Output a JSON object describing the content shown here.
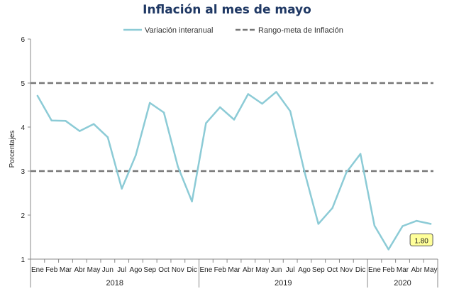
{
  "chart_data": {
    "type": "line",
    "title": "Inflación al mes de mayo",
    "ylabel": "Porcentajes",
    "xlabel": "",
    "ylim": [
      1,
      6
    ],
    "yticks": [
      1,
      2,
      3,
      4,
      5,
      6
    ],
    "grid": false,
    "legend_position": "top",
    "categories": [
      "Ene",
      "Feb",
      "Mar",
      "Abr",
      "May",
      "Jun",
      "Jul",
      "Ago",
      "Sep",
      "Oct",
      "Nov",
      "Dic",
      "Ene",
      "Feb",
      "Mar",
      "Abr",
      "May",
      "Jun",
      "Jul",
      "Ago",
      "Sep",
      "Oct",
      "Nov",
      "Dic",
      "Ene",
      "Feb",
      "Mar",
      "Abr",
      "May"
    ],
    "year_groups": [
      {
        "label": "2018",
        "start": 0,
        "end": 11
      },
      {
        "label": "2019",
        "start": 12,
        "end": 23
      },
      {
        "label": "2020",
        "start": 24,
        "end": 28
      }
    ],
    "series": [
      {
        "name": "Variación interanual",
        "color": "#8ccbd6",
        "style": "solid",
        "values": [
          4.71,
          4.15,
          4.14,
          3.91,
          4.07,
          3.77,
          2.6,
          3.36,
          4.55,
          4.33,
          3.1,
          2.31,
          4.09,
          4.45,
          4.17,
          4.75,
          4.53,
          4.8,
          4.36,
          3.0,
          1.8,
          2.16,
          2.97,
          3.39,
          1.76,
          1.22,
          1.75,
          1.87,
          1.8
        ]
      },
      {
        "name": "Rango-meta de Inflación",
        "color": "#777777",
        "style": "dashed",
        "values_upper": 5,
        "values_lower": 3
      }
    ],
    "annotations": [
      {
        "text": "1.80",
        "category_index": 28,
        "value": 1.8
      }
    ],
    "axis_color": "#888888",
    "callout_fill": "#ffff99"
  }
}
